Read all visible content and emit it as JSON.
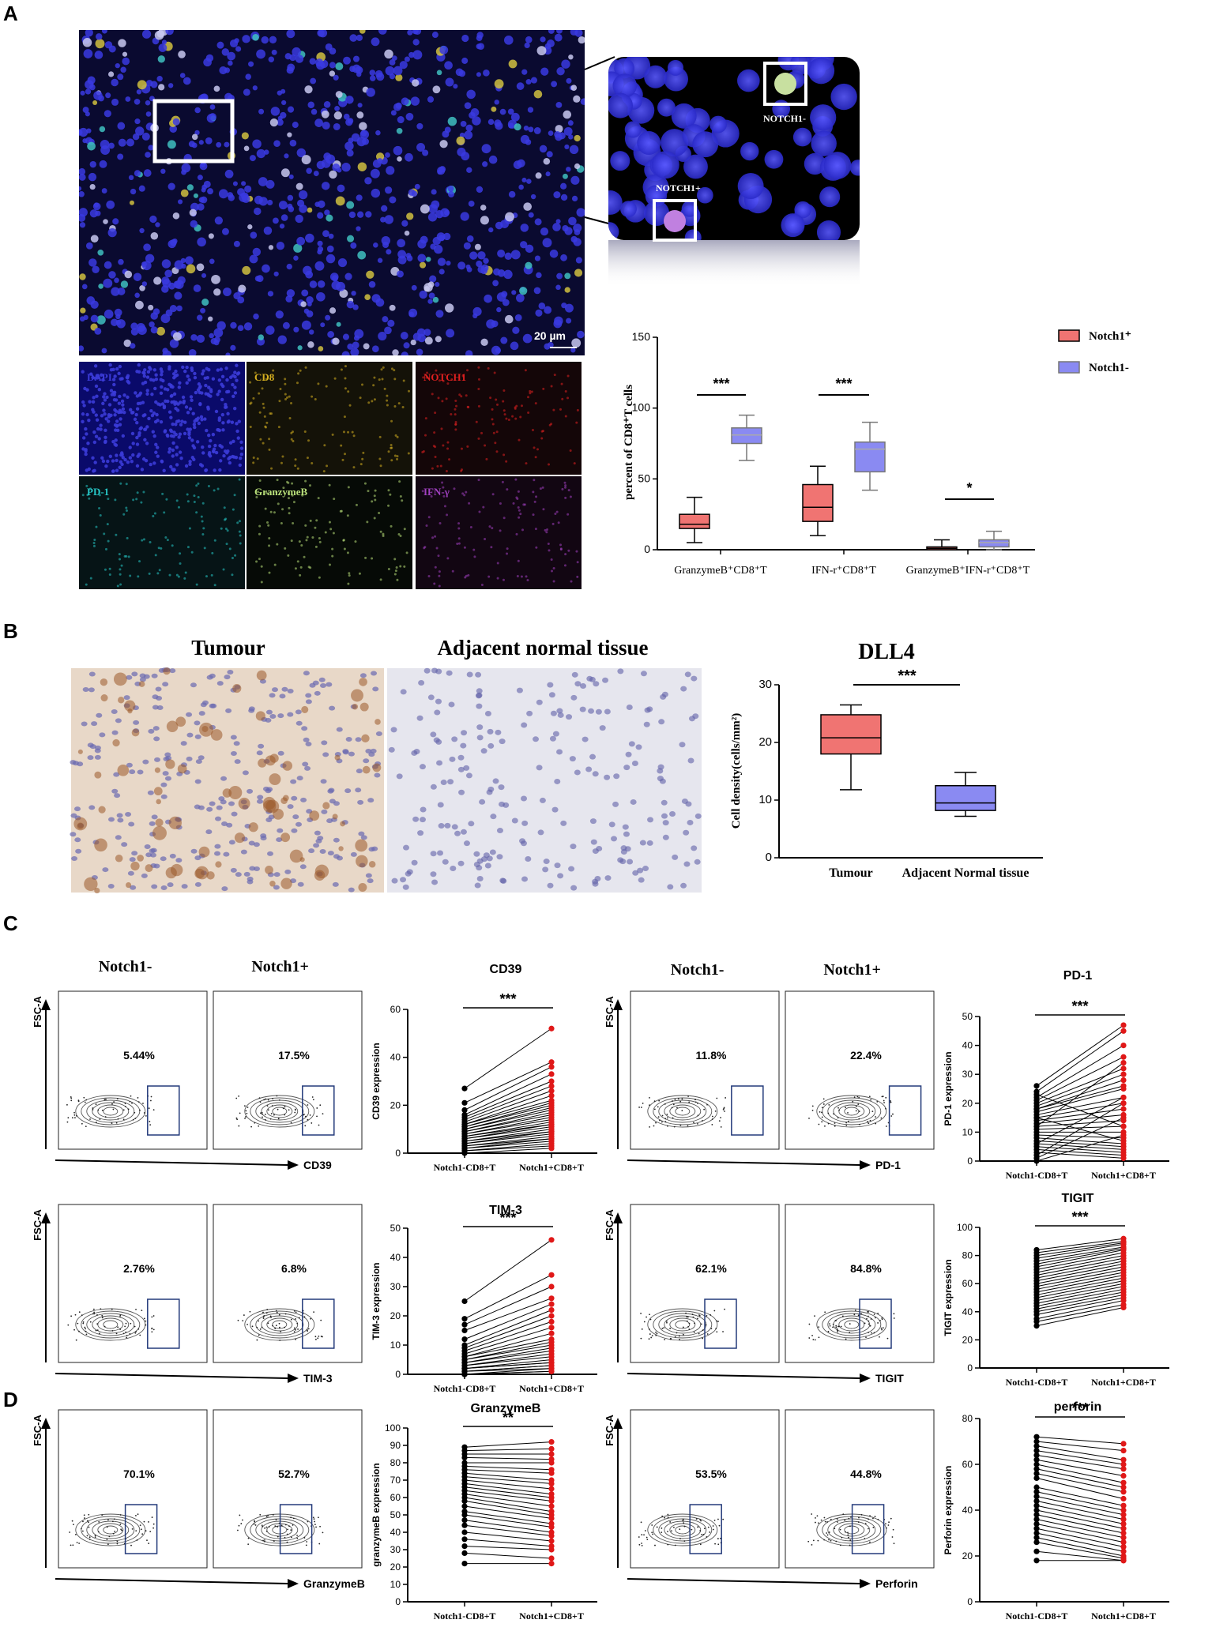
{
  "panel_A": {
    "label": "A",
    "scale_bar": "20 µm",
    "zoom_labels": [
      "NOTCH1-",
      "NOTCH1+"
    ],
    "channels": [
      {
        "name": "DAPI",
        "color": "#3b3bd8",
        "bg": "#0a0a6a"
      },
      {
        "name": "CD8",
        "color": "#d6b020",
        "bg": "#141208"
      },
      {
        "name": "NOTCH1",
        "color": "#e02020",
        "bg": "#140608"
      },
      {
        "name": "PD-1",
        "color": "#27c7c7",
        "bg": "#061416"
      },
      {
        "name": "GranzymeB",
        "color": "#b9e07a",
        "bg": "#060a06"
      },
      {
        "name": "IFN-γ",
        "color": "#a040c0",
        "bg": "#120612"
      }
    ],
    "chart_data": {
      "type": "box",
      "ylabel": "percent of CD8⁺T cells",
      "ylim": [
        0,
        150
      ],
      "yticks": [
        0,
        50,
        100,
        150
      ],
      "legend_placement": "top-right",
      "categories": [
        "GranzymeB⁺CD8⁺T",
        "IFN-r⁺CD8⁺T",
        "GranzymeB⁺IFN-r⁺CD8⁺T"
      ],
      "significance": [
        "***",
        "***",
        "*"
      ],
      "series": [
        {
          "name": "Notch1⁺",
          "color": "#f07472",
          "boxes": [
            {
              "min": 5,
              "q1": 15,
              "median": 18,
              "q3": 25,
              "max": 37
            },
            {
              "min": 10,
              "q1": 20,
              "median": 30,
              "q3": 46,
              "max": 59
            },
            {
              "min": 0,
              "q1": 0,
              "median": 1,
              "q3": 2,
              "max": 7
            }
          ]
        },
        {
          "name": "Notch1-",
          "color": "#8a8af2",
          "boxes": [
            {
              "min": 63,
              "q1": 75,
              "median": 81,
              "q3": 86,
              "max": 95
            },
            {
              "min": 42,
              "q1": 55,
              "median": 71,
              "q3": 76,
              "max": 90
            },
            {
              "min": 0,
              "q1": 2,
              "median": 5,
              "q3": 7,
              "max": 13
            }
          ]
        }
      ]
    }
  },
  "panel_B": {
    "label": "B",
    "titles": [
      "Tumour",
      "Adjacent normal tissue"
    ],
    "chart_data": {
      "type": "box",
      "title": "DLL4",
      "ylabel": "Cell density(cells/mm²)",
      "ylim": [
        0,
        30
      ],
      "yticks": [
        0,
        10,
        20,
        30
      ],
      "categories": [
        "Tumour",
        "Adjacent Normal tissue"
      ],
      "significance": "***",
      "boxes": [
        {
          "min": 11.8,
          "q1": 18,
          "median": 20.8,
          "q3": 24.8,
          "max": 26.5,
          "color": "#f07472"
        },
        {
          "min": 7.2,
          "q1": 8.2,
          "median": 9.5,
          "q3": 12.5,
          "max": 14.8,
          "color": "#8a8af2"
        }
      ]
    }
  },
  "panel_C": {
    "label": "C",
    "panel_D_label": "D",
    "yaxis_label": "FSC-A",
    "flow_sets": [
      {
        "headers": [
          "Notch1-",
          "Notch1+"
        ],
        "marker": "CD39",
        "gates": [
          "5.44%",
          "17.5%"
        ]
      },
      {
        "headers": [
          "Notch1-",
          "Notch1+"
        ],
        "marker": "PD-1",
        "gates": [
          "11.8%",
          "22.4%"
        ]
      },
      {
        "headers": [],
        "marker": "TIM-3",
        "gates": [
          "2.76%",
          "6.8%"
        ]
      },
      {
        "headers": [],
        "marker": "TIGIT",
        "gates": [
          "62.1%",
          "84.8%"
        ]
      },
      {
        "headers": [],
        "marker": "GranzymeB",
        "gates": [
          "70.1%",
          "52.7%"
        ]
      },
      {
        "headers": [],
        "marker": "Perforin",
        "gates": [
          "53.5%",
          "44.8%"
        ]
      }
    ]
  },
  "paired_charts": [
    {
      "type": "paired-scatter",
      "title": "CD39",
      "ylabel": "CD39 expression",
      "categories": [
        "Notch1-CD8+T",
        "Notch1+CD8+T"
      ],
      "significance": "***",
      "ylim": [
        0,
        60
      ],
      "yticks": [
        0,
        20,
        40,
        60
      ],
      "pairs": [
        [
          27,
          52
        ],
        [
          21,
          38
        ],
        [
          18,
          36
        ],
        [
          16,
          33
        ],
        [
          15,
          30
        ],
        [
          14,
          28
        ],
        [
          13,
          26
        ],
        [
          12,
          24
        ],
        [
          12,
          22
        ],
        [
          11,
          21
        ],
        [
          11,
          20
        ],
        [
          10,
          19
        ],
        [
          10,
          18
        ],
        [
          9,
          17
        ],
        [
          9,
          16
        ],
        [
          8,
          15
        ],
        [
          8,
          14
        ],
        [
          7,
          13
        ],
        [
          7,
          12
        ],
        [
          6,
          12
        ],
        [
          6,
          11
        ],
        [
          5,
          10
        ],
        [
          5,
          9
        ],
        [
          4,
          9
        ],
        [
          4,
          8
        ],
        [
          3,
          7
        ],
        [
          3,
          6
        ],
        [
          2,
          6
        ],
        [
          2,
          5
        ],
        [
          1,
          4
        ],
        [
          1,
          3
        ],
        [
          0,
          2
        ]
      ]
    },
    {
      "type": "paired-scatter",
      "title": "PD-1",
      "ylabel": "PD-1 expression",
      "categories": [
        "Notch1-CD8+T",
        "Notch1+CD8+T"
      ],
      "significance": "***",
      "ylim": [
        0,
        50
      ],
      "yticks": [
        0,
        10,
        20,
        30,
        40,
        50
      ],
      "pairs": [
        [
          26,
          47
        ],
        [
          24,
          45
        ],
        [
          22,
          40
        ],
        [
          21,
          36
        ],
        [
          20,
          32
        ],
        [
          19,
          30
        ],
        [
          18,
          28
        ],
        [
          17,
          25
        ],
        [
          16,
          22
        ],
        [
          15,
          20
        ],
        [
          14,
          18
        ],
        [
          13,
          16
        ],
        [
          12,
          14
        ],
        [
          11,
          12
        ],
        [
          10,
          10
        ],
        [
          9,
          8
        ],
        [
          8,
          6
        ],
        [
          7,
          5
        ],
        [
          6,
          4
        ],
        [
          5,
          3
        ],
        [
          4,
          2
        ],
        [
          3,
          1
        ],
        [
          2,
          20
        ],
        [
          1,
          15
        ],
        [
          0,
          9
        ],
        [
          23,
          12
        ],
        [
          18,
          26
        ],
        [
          12,
          34
        ],
        [
          6,
          22
        ],
        [
          15,
          7
        ]
      ]
    },
    {
      "type": "paired-scatter",
      "title": "TIM-3",
      "ylabel": "TIM-3 expression",
      "categories": [
        "Notch1-CD8+T",
        "Notch1+CD8+T"
      ],
      "significance": "***",
      "ylim": [
        0,
        50
      ],
      "yticks": [
        0,
        10,
        20,
        30,
        40,
        50
      ],
      "pairs": [
        [
          25,
          46
        ],
        [
          19,
          34
        ],
        [
          17,
          30
        ],
        [
          15,
          26
        ],
        [
          12,
          24
        ],
        [
          10,
          22
        ],
        [
          9,
          20
        ],
        [
          8,
          18
        ],
        [
          7,
          16
        ],
        [
          6,
          14
        ],
        [
          6,
          12
        ],
        [
          5,
          11
        ],
        [
          5,
          10
        ],
        [
          4,
          9
        ],
        [
          4,
          8
        ],
        [
          3,
          7
        ],
        [
          3,
          6
        ],
        [
          2,
          5
        ],
        [
          2,
          4
        ],
        [
          2,
          4
        ],
        [
          1,
          3
        ],
        [
          1,
          3
        ],
        [
          1,
          2
        ],
        [
          0,
          2
        ],
        [
          0,
          1
        ],
        [
          0,
          1
        ]
      ]
    },
    {
      "type": "paired-scatter",
      "title": "TIGIT",
      "ylabel": "TIGIT expression",
      "categories": [
        "Notch1-CD8+T",
        "Notch1+CD8+T"
      ],
      "significance": "***",
      "ylim": [
        0,
        100
      ],
      "yticks": [
        0,
        20,
        40,
        60,
        80,
        100
      ],
      "pairs": [
        [
          84,
          92
        ],
        [
          82,
          90
        ],
        [
          80,
          89
        ],
        [
          78,
          88
        ],
        [
          76,
          86
        ],
        [
          74,
          85
        ],
        [
          72,
          84
        ],
        [
          70,
          82
        ],
        [
          68,
          80
        ],
        [
          66,
          78
        ],
        [
          64,
          76
        ],
        [
          62,
          74
        ],
        [
          60,
          72
        ],
        [
          58,
          70
        ],
        [
          56,
          68
        ],
        [
          54,
          66
        ],
        [
          52,
          64
        ],
        [
          50,
          62
        ],
        [
          48,
          60
        ],
        [
          46,
          58
        ],
        [
          44,
          56
        ],
        [
          42,
          54
        ],
        [
          40,
          52
        ],
        [
          38,
          50
        ],
        [
          35,
          48
        ],
        [
          33,
          45
        ],
        [
          30,
          43
        ]
      ]
    },
    {
      "type": "paired-scatter",
      "title": "GranzymeB",
      "ylabel": "granzymeB expression",
      "categories": [
        "Notch1-CD8+T",
        "Notch1+CD8+T"
      ],
      "significance": "**",
      "ylim": [
        0,
        100
      ],
      "yticks": [
        0,
        10,
        20,
        30,
        40,
        50,
        60,
        70,
        80,
        90,
        100
      ],
      "pairs": [
        [
          89,
          92
        ],
        [
          87,
          88
        ],
        [
          85,
          85
        ],
        [
          83,
          82
        ],
        [
          80,
          80
        ],
        [
          78,
          76
        ],
        [
          76,
          74
        ],
        [
          74,
          70
        ],
        [
          72,
          68
        ],
        [
          70,
          65
        ],
        [
          68,
          62
        ],
        [
          66,
          60
        ],
        [
          64,
          58
        ],
        [
          62,
          55
        ],
        [
          60,
          52
        ],
        [
          58,
          50
        ],
        [
          55,
          48
        ],
        [
          52,
          45
        ],
        [
          50,
          43
        ],
        [
          47,
          40
        ],
        [
          44,
          38
        ],
        [
          40,
          35
        ],
        [
          36,
          32
        ],
        [
          32,
          30
        ],
        [
          28,
          25
        ],
        [
          22,
          22
        ]
      ]
    },
    {
      "type": "paired-scatter",
      "title": "perforin",
      "ylabel": "Perforin expression",
      "categories": [
        "Notch1-CD8+T",
        "Notch1+CD8+T"
      ],
      "significance": "***",
      "ylim": [
        0,
        80
      ],
      "yticks": [
        0,
        20,
        40,
        60,
        80
      ],
      "pairs": [
        [
          72,
          69
        ],
        [
          70,
          66
        ],
        [
          68,
          62
        ],
        [
          66,
          60
        ],
        [
          64,
          58
        ],
        [
          62,
          55
        ],
        [
          60,
          52
        ],
        [
          58,
          50
        ],
        [
          56,
          48
        ],
        [
          54,
          45
        ],
        [
          50,
          42
        ],
        [
          48,
          40
        ],
        [
          46,
          38
        ],
        [
          44,
          36
        ],
        [
          42,
          34
        ],
        [
          40,
          32
        ],
        [
          38,
          30
        ],
        [
          36,
          28
        ],
        [
          34,
          26
        ],
        [
          32,
          24
        ],
        [
          30,
          22
        ],
        [
          28,
          20
        ],
        [
          26,
          19
        ],
        [
          22,
          18
        ],
        [
          18,
          18
        ]
      ]
    }
  ]
}
